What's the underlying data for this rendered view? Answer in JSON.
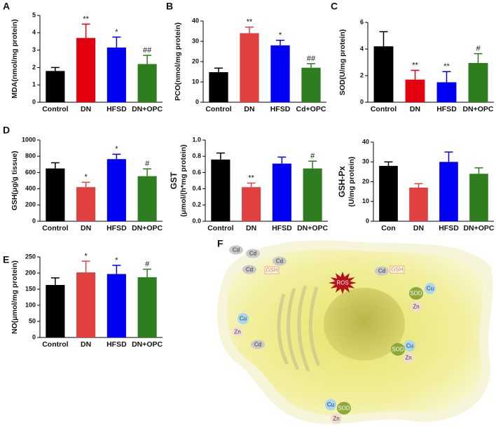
{
  "chart_data": [
    {
      "type": "bar",
      "panel": "A",
      "ylabel": "MDA(nmol/mg protein)",
      "categories": [
        "Control",
        "DN",
        "HFSD",
        "DN+OPC"
      ],
      "values": [
        1.8,
        3.7,
        3.15,
        2.2
      ],
      "errors": [
        0.2,
        0.8,
        0.6,
        0.5
      ],
      "annotations": [
        null,
        "**",
        "*",
        "##"
      ],
      "colors": [
        "#000000",
        "#e3000f",
        "#0000f5",
        "#2e7d1e"
      ],
      "ylim": [
        0,
        5
      ],
      "yticks": [
        0,
        1,
        2,
        3,
        4,
        5
      ]
    },
    {
      "type": "bar",
      "panel": "B",
      "ylabel": "PCO(nmol/mg protein)",
      "categories": [
        "Control",
        "DN",
        "HFSD",
        "Cd+OPC"
      ],
      "values": [
        14.8,
        34,
        28,
        17
      ],
      "errors": [
        2,
        3,
        2.5,
        2
      ],
      "annotations": [
        null,
        "**",
        "*",
        "##"
      ],
      "colors": [
        "#000000",
        "#e04040",
        "#0000f5",
        "#2e7d1e"
      ],
      "ylim": [
        0,
        40
      ],
      "yticks": [
        0,
        10,
        20,
        30,
        40
      ]
    },
    {
      "type": "bar",
      "panel": "C",
      "ylabel": "SOD(U/mg protein)",
      "categories": [
        "Control",
        "DN",
        "HFSD",
        "DN+OPC"
      ],
      "values": [
        4.2,
        1.7,
        1.5,
        2.95
      ],
      "errors": [
        1.1,
        0.7,
        0.8,
        0.7
      ],
      "annotations": [
        null,
        "**",
        "**",
        "#"
      ],
      "colors": [
        "#000000",
        "#e3000f",
        "#0000f5",
        "#2e7d1e"
      ],
      "ylim": [
        0,
        6
      ],
      "yticks": [
        0,
        2,
        4,
        6
      ]
    },
    {
      "type": "bar",
      "panel": "D",
      "ylabel": "GSH(μg/g tissue)",
      "categories": [
        "Control",
        "DN",
        "HFSD",
        "DN+OPC"
      ],
      "values": [
        650,
        420,
        765,
        555
      ],
      "errors": [
        70,
        60,
        60,
        90
      ],
      "annotations": [
        null,
        "*",
        "*",
        "#"
      ],
      "colors": [
        "#000000",
        "#e04040",
        "#0000f5",
        "#2e7d1e"
      ],
      "ylim": [
        0,
        1000
      ],
      "yticks": [
        0,
        200,
        400,
        600,
        800,
        1000
      ]
    },
    {
      "type": "bar",
      "ylabel": [
        "GST",
        "(μmol/(h*mg protein)"
      ],
      "categories": [
        "Control",
        "DN",
        "HFSD",
        "DN+OPC"
      ],
      "values": [
        0.76,
        0.42,
        0.71,
        0.65
      ],
      "errors": [
        0.08,
        0.05,
        0.08,
        0.09
      ],
      "annotations": [
        null,
        "**",
        null,
        "#"
      ],
      "colors": [
        "#000000",
        "#e04040",
        "#0000f5",
        "#2e7d1e"
      ],
      "ylim": [
        0,
        1
      ],
      "yticks": [
        {
          "value": 0,
          "label": "0.0"
        },
        0.2,
        0.4,
        0.6,
        0.8,
        {
          "value": 1,
          "label": "1.0"
        }
      ]
    },
    {
      "type": "bar",
      "ylabel": [
        "GSH-Px",
        "(U/mg protein)"
      ],
      "categories": [
        "Con",
        "DN",
        "HFSD",
        "DN+OPC"
      ],
      "values": [
        28,
        17,
        30,
        24
      ],
      "errors": [
        2,
        2,
        5,
        3
      ],
      "colors": [
        "#000000",
        "#e04040",
        "#0000f5",
        "#2e7d1e"
      ],
      "ylim": [
        0,
        40
      ],
      "yticks": [
        0,
        10,
        20,
        30,
        40
      ]
    },
    {
      "type": "bar",
      "panel": "E",
      "ylabel": "NO(μmol/mg protein)",
      "categories": [
        "Control",
        "DN",
        "HFSD",
        "DN+OPC"
      ],
      "values": [
        163,
        202,
        197,
        187
      ],
      "errors": [
        22,
        35,
        27,
        25
      ],
      "annotations": [
        null,
        "*",
        "*",
        "#"
      ],
      "colors": [
        "#000000",
        "#e04040",
        "#0000f5",
        "#2e7d1e"
      ],
      "ylim": [
        0,
        250
      ],
      "yticks": [
        0,
        50,
        100,
        150,
        200,
        250
      ]
    }
  ],
  "diagram": {
    "panel": "F",
    "labels": [
      {
        "text": "Cd"
      },
      {
        "text": "Cd"
      },
      {
        "text": "Cd"
      },
      {
        "text": "Cd"
      },
      {
        "text": "GSH"
      },
      {
        "text": "Cd"
      },
      {
        "text": "GSH"
      },
      {
        "text": "ROS"
      },
      {
        "text": "SOD"
      },
      {
        "text": "Cu"
      },
      {
        "text": "Zn"
      },
      {
        "text": "Cu"
      },
      {
        "text": "Zn"
      },
      {
        "text": "Cd"
      },
      {
        "text": "SOD"
      },
      {
        "text": "Cu"
      },
      {
        "text": "Zn"
      },
      {
        "text": "Cu"
      },
      {
        "text": "SOD"
      },
      {
        "text": "Zn"
      }
    ]
  }
}
